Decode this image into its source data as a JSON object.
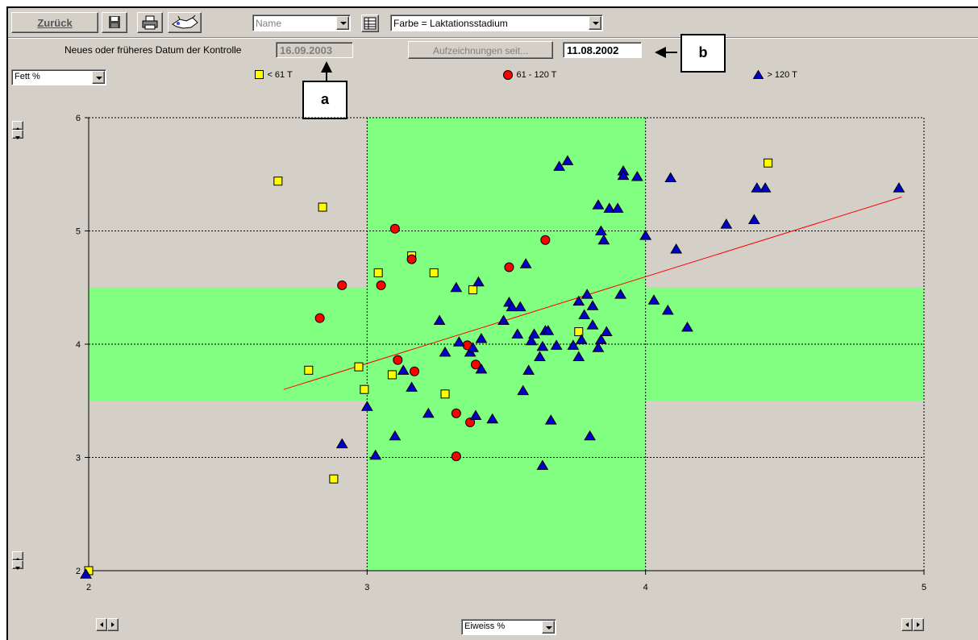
{
  "toolbar": {
    "back_label": "Zurück",
    "name_combo_value": "Name",
    "color_combo_value": "Farbe = Laktationsstadium"
  },
  "datebar": {
    "label": "Neues oder früheres Datum der Kontrolle",
    "control_date": "16.09.2003",
    "records_button": "Aufzeichnungen seit...",
    "records_since_date": "11.08.2002"
  },
  "callouts": {
    "a": "a",
    "b": "b"
  },
  "y_axis_select": "Fett %",
  "x_axis_select": "Eiweiss %",
  "legend": [
    {
      "label": "< 61 T",
      "shape": "square",
      "color": "#ffff00"
    },
    {
      "label": "61 - 120 T",
      "shape": "circle",
      "color": "#ff0000"
    },
    {
      "label": "> 120 T",
      "shape": "triangle",
      "color": "#0000cc"
    }
  ],
  "colors": {
    "band": "#80ff80",
    "trend": "#ff0000",
    "panel": "#d4d0c8"
  },
  "chart_data": {
    "type": "scatter",
    "xlim": [
      2,
      5
    ],
    "ylim": [
      2,
      6
    ],
    "x_ticks": [
      "2",
      "3",
      "4",
      "5"
    ],
    "y_ticks": [
      "2",
      "3",
      "4",
      "5",
      "6"
    ],
    "grid": true,
    "target_x_range": [
      3.0,
      4.0
    ],
    "target_y_range": [
      3.5,
      4.5
    ],
    "trend_line": {
      "x": [
        2.7,
        4.92
      ],
      "y": [
        3.6,
        5.3
      ]
    },
    "series": [
      {
        "name": "< 61 T",
        "marker": "square",
        "color": "#ffff00",
        "x": [
          2.68,
          2.84,
          2.79,
          2.88,
          2.97,
          2.99,
          3.04,
          3.09,
          3.16,
          3.24,
          3.28,
          3.38,
          3.76,
          4.44,
          2.0
        ],
        "y": [
          5.44,
          5.21,
          3.77,
          2.81,
          3.8,
          3.6,
          4.63,
          3.73,
          4.78,
          4.63,
          3.56,
          4.48,
          4.11,
          5.6,
          2.0
        ]
      },
      {
        "name": "61 - 120 T",
        "marker": "circle",
        "color": "#ff0000",
        "x": [
          2.83,
          2.91,
          3.05,
          3.1,
          3.11,
          3.16,
          3.17,
          3.32,
          3.32,
          3.36,
          3.37,
          3.39,
          3.51,
          3.64
        ],
        "y": [
          4.23,
          4.52,
          4.52,
          5.02,
          3.86,
          4.75,
          3.76,
          3.39,
          3.01,
          3.99,
          3.31,
          3.82,
          4.68,
          4.92
        ]
      },
      {
        "name": "> 120 T",
        "marker": "triangle",
        "color": "#0000cc",
        "x": [
          1.99,
          2.91,
          3.0,
          3.03,
          3.1,
          3.13,
          3.16,
          3.22,
          3.26,
          3.28,
          3.32,
          3.33,
          3.37,
          3.38,
          3.39,
          3.4,
          3.41,
          3.41,
          3.45,
          3.49,
          3.51,
          3.52,
          3.54,
          3.55,
          3.56,
          3.57,
          3.58,
          3.59,
          3.6,
          3.62,
          3.63,
          3.63,
          3.64,
          3.65,
          3.66,
          3.68,
          3.69,
          3.72,
          3.74,
          3.76,
          3.76,
          3.77,
          3.78,
          3.79,
          3.8,
          3.81,
          3.81,
          3.83,
          3.83,
          3.84,
          3.84,
          3.85,
          3.86,
          3.87,
          3.9,
          3.91,
          3.92,
          3.92,
          3.97,
          4.0,
          4.03,
          4.08,
          4.09,
          4.11,
          4.15,
          4.29,
          4.39,
          4.4,
          4.43,
          4.91
        ],
        "y": [
          1.97,
          3.12,
          3.45,
          3.02,
          3.19,
          3.77,
          3.62,
          3.39,
          4.21,
          3.93,
          4.5,
          4.02,
          3.93,
          3.97,
          3.37,
          4.55,
          4.05,
          3.78,
          3.34,
          4.21,
          4.37,
          4.33,
          4.09,
          4.33,
          3.59,
          4.71,
          3.77,
          4.03,
          4.09,
          3.89,
          3.98,
          2.93,
          4.12,
          4.12,
          3.33,
          3.99,
          5.57,
          5.62,
          3.99,
          4.38,
          3.89,
          4.04,
          4.26,
          4.44,
          3.19,
          4.17,
          4.34,
          5.23,
          3.97,
          5.0,
          4.04,
          4.92,
          4.11,
          5.2,
          5.2,
          4.44,
          5.53,
          5.49,
          5.48,
          4.96,
          4.39,
          4.3,
          5.47,
          4.84,
          4.15,
          5.06,
          5.1,
          5.38,
          5.38,
          5.38
        ]
      }
    ]
  }
}
